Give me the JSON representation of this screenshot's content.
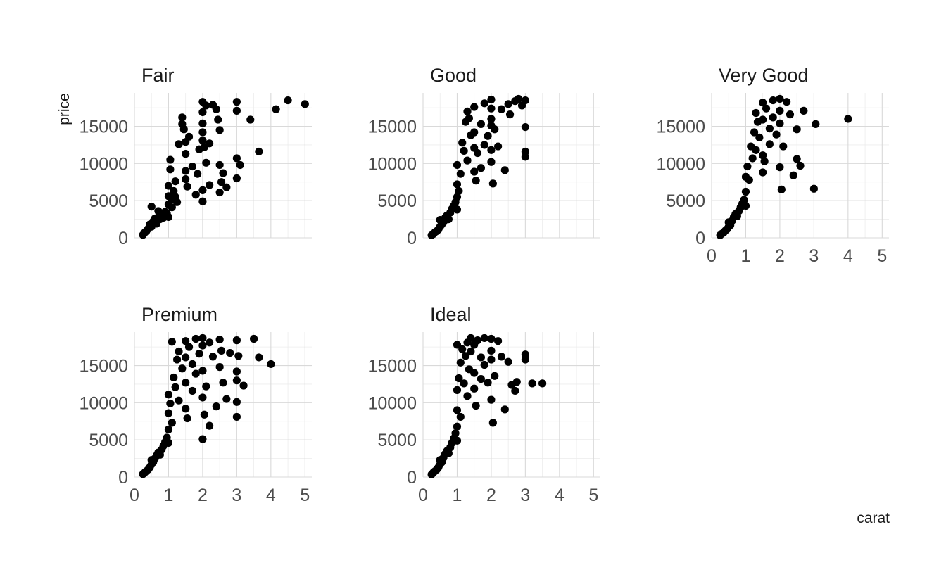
{
  "chart_data": {
    "type": "scatter",
    "xlabel": "carat",
    "ylabel": "price",
    "xlim": [
      0,
      5.2
    ],
    "ylim": [
      0,
      19500
    ],
    "x_ticks": [
      0,
      1,
      2,
      3,
      4,
      5
    ],
    "x_tick_labels": [
      "0",
      "1",
      "2",
      "3",
      "4",
      "5"
    ],
    "y_ticks": [
      0,
      5000,
      10000,
      15000
    ],
    "y_tick_labels": [
      "0",
      "5000",
      "10000",
      "15000"
    ],
    "grid": true,
    "point_color": "#000000",
    "facets": [
      {
        "name": "Fair",
        "points": [
          [
            0.25,
            400
          ],
          [
            0.3,
            700
          ],
          [
            0.35,
            900
          ],
          [
            0.4,
            1200
          ],
          [
            0.45,
            1800
          ],
          [
            0.5,
            1500
          ],
          [
            0.5,
            4200
          ],
          [
            0.55,
            2200
          ],
          [
            0.6,
            2600
          ],
          [
            0.65,
            1900
          ],
          [
            0.7,
            2800
          ],
          [
            0.7,
            3600
          ],
          [
            0.75,
            2500
          ],
          [
            0.8,
            3100
          ],
          [
            0.85,
            2700
          ],
          [
            0.9,
            3500
          ],
          [
            0.95,
            3300
          ],
          [
            1.0,
            2800
          ],
          [
            1.0,
            4500
          ],
          [
            1.0,
            5600
          ],
          [
            1.0,
            7000
          ],
          [
            1.05,
            9200
          ],
          [
            1.05,
            10500
          ],
          [
            1.1,
            5200
          ],
          [
            1.1,
            4100
          ],
          [
            1.15,
            6300
          ],
          [
            1.2,
            5500
          ],
          [
            1.2,
            7600
          ],
          [
            1.25,
            4800
          ],
          [
            1.3,
            12600
          ],
          [
            1.4,
            16200
          ],
          [
            1.4,
            15300
          ],
          [
            1.45,
            14600
          ],
          [
            1.5,
            12900
          ],
          [
            1.5,
            11300
          ],
          [
            1.5,
            9000
          ],
          [
            1.5,
            7900
          ],
          [
            1.55,
            6900
          ],
          [
            1.6,
            13600
          ],
          [
            1.7,
            9600
          ],
          [
            1.8,
            5800
          ],
          [
            1.85,
            8600
          ],
          [
            1.9,
            11900
          ],
          [
            2.0,
            18300
          ],
          [
            2.0,
            16900
          ],
          [
            2.0,
            15400
          ],
          [
            2.0,
            14200
          ],
          [
            2.0,
            13100
          ],
          [
            2.0,
            6400
          ],
          [
            2.0,
            4900
          ],
          [
            2.05,
            12200
          ],
          [
            2.1,
            17800
          ],
          [
            2.1,
            10100
          ],
          [
            2.2,
            12700
          ],
          [
            2.2,
            7100
          ],
          [
            2.3,
            17900
          ],
          [
            2.4,
            17300
          ],
          [
            2.45,
            15900
          ],
          [
            2.5,
            14500
          ],
          [
            2.5,
            9800
          ],
          [
            2.5,
            6100
          ],
          [
            2.55,
            7500
          ],
          [
            2.6,
            8700
          ],
          [
            2.7,
            6800
          ],
          [
            3.0,
            18300
          ],
          [
            3.0,
            17100
          ],
          [
            3.0,
            10700
          ],
          [
            3.0,
            8000
          ],
          [
            3.1,
            9800
          ],
          [
            3.4,
            15900
          ],
          [
            3.65,
            11600
          ],
          [
            4.15,
            17300
          ],
          [
            4.5,
            18500
          ],
          [
            5.0,
            18000
          ]
        ]
      },
      {
        "name": "Good",
        "points": [
          [
            0.25,
            350
          ],
          [
            0.3,
            500
          ],
          [
            0.35,
            750
          ],
          [
            0.4,
            900
          ],
          [
            0.45,
            1100
          ],
          [
            0.5,
            1500
          ],
          [
            0.5,
            2400
          ],
          [
            0.55,
            1800
          ],
          [
            0.6,
            2100
          ],
          [
            0.65,
            2700
          ],
          [
            0.7,
            3000
          ],
          [
            0.75,
            2500
          ],
          [
            0.8,
            3400
          ],
          [
            0.85,
            3900
          ],
          [
            0.9,
            4300
          ],
          [
            0.95,
            4800
          ],
          [
            1.0,
            5500
          ],
          [
            1.0,
            7200
          ],
          [
            1.0,
            9800
          ],
          [
            1.0,
            3800
          ],
          [
            1.05,
            6300
          ],
          [
            1.1,
            8600
          ],
          [
            1.15,
            12800
          ],
          [
            1.2,
            11700
          ],
          [
            1.25,
            15600
          ],
          [
            1.3,
            17000
          ],
          [
            1.3,
            10400
          ],
          [
            1.35,
            16100
          ],
          [
            1.4,
            13800
          ],
          [
            1.5,
            17600
          ],
          [
            1.5,
            14200
          ],
          [
            1.5,
            12100
          ],
          [
            1.5,
            8900
          ],
          [
            1.55,
            7700
          ],
          [
            1.6,
            11400
          ],
          [
            1.7,
            15300
          ],
          [
            1.7,
            9400
          ],
          [
            1.8,
            18100
          ],
          [
            1.8,
            12500
          ],
          [
            1.9,
            13700
          ],
          [
            2.0,
            18600
          ],
          [
            2.0,
            17400
          ],
          [
            2.0,
            16000
          ],
          [
            2.0,
            15100
          ],
          [
            2.0,
            11800
          ],
          [
            2.0,
            10200
          ],
          [
            2.05,
            7300
          ],
          [
            2.1,
            14600
          ],
          [
            2.2,
            12300
          ],
          [
            2.3,
            17300
          ],
          [
            2.4,
            9100
          ],
          [
            2.5,
            18000
          ],
          [
            2.55,
            16600
          ],
          [
            2.7,
            18400
          ],
          [
            2.8,
            18700
          ],
          [
            2.9,
            17800
          ],
          [
            3.0,
            18500
          ],
          [
            3.0,
            14900
          ],
          [
            3.0,
            11600
          ],
          [
            3.0,
            10900
          ]
        ]
      },
      {
        "name": "Very Good",
        "points": [
          [
            0.25,
            350
          ],
          [
            0.3,
            550
          ],
          [
            0.35,
            700
          ],
          [
            0.4,
            950
          ],
          [
            0.45,
            1150
          ],
          [
            0.5,
            1500
          ],
          [
            0.5,
            2100
          ],
          [
            0.55,
            1700
          ],
          [
            0.6,
            2300
          ],
          [
            0.65,
            2800
          ],
          [
            0.7,
            3200
          ],
          [
            0.75,
            2900
          ],
          [
            0.8,
            3600
          ],
          [
            0.85,
            4100
          ],
          [
            0.9,
            4600
          ],
          [
            0.95,
            5100
          ],
          [
            1.0,
            6200
          ],
          [
            1.0,
            8200
          ],
          [
            1.0,
            4300
          ],
          [
            1.05,
            9600
          ],
          [
            1.1,
            7800
          ],
          [
            1.15,
            12300
          ],
          [
            1.2,
            10700
          ],
          [
            1.25,
            14200
          ],
          [
            1.3,
            16800
          ],
          [
            1.3,
            11800
          ],
          [
            1.35,
            15600
          ],
          [
            1.4,
            13500
          ],
          [
            1.5,
            18200
          ],
          [
            1.5,
            15900
          ],
          [
            1.5,
            11100
          ],
          [
            1.5,
            8800
          ],
          [
            1.55,
            10300
          ],
          [
            1.6,
            17400
          ],
          [
            1.7,
            14700
          ],
          [
            1.7,
            12600
          ],
          [
            1.8,
            18500
          ],
          [
            1.8,
            16200
          ],
          [
            1.9,
            13900
          ],
          [
            2.0,
            18700
          ],
          [
            2.0,
            17100
          ],
          [
            2.0,
            15400
          ],
          [
            2.0,
            9500
          ],
          [
            2.05,
            6500
          ],
          [
            2.1,
            12300
          ],
          [
            2.2,
            18300
          ],
          [
            2.3,
            16600
          ],
          [
            2.4,
            8400
          ],
          [
            2.5,
            14600
          ],
          [
            2.5,
            10600
          ],
          [
            2.6,
            9700
          ],
          [
            2.7,
            17100
          ],
          [
            3.0,
            6600
          ],
          [
            3.05,
            15300
          ],
          [
            4.0,
            16000
          ]
        ]
      },
      {
        "name": "Premium",
        "points": [
          [
            0.25,
            400
          ],
          [
            0.3,
            600
          ],
          [
            0.35,
            800
          ],
          [
            0.4,
            1000
          ],
          [
            0.45,
            1300
          ],
          [
            0.5,
            1700
          ],
          [
            0.5,
            2300
          ],
          [
            0.55,
            2000
          ],
          [
            0.6,
            2500
          ],
          [
            0.65,
            2900
          ],
          [
            0.7,
            3300
          ],
          [
            0.75,
            3000
          ],
          [
            0.8,
            3700
          ],
          [
            0.85,
            4200
          ],
          [
            0.9,
            4700
          ],
          [
            0.95,
            5300
          ],
          [
            1.0,
            6400
          ],
          [
            1.0,
            8600
          ],
          [
            1.0,
            11100
          ],
          [
            1.0,
            4600
          ],
          [
            1.05,
            9900
          ],
          [
            1.1,
            7300
          ],
          [
            1.1,
            18200
          ],
          [
            1.15,
            13400
          ],
          [
            1.2,
            12100
          ],
          [
            1.25,
            15800
          ],
          [
            1.3,
            16900
          ],
          [
            1.3,
            10300
          ],
          [
            1.4,
            14600
          ],
          [
            1.5,
            18300
          ],
          [
            1.5,
            16100
          ],
          [
            1.5,
            12700
          ],
          [
            1.5,
            9200
          ],
          [
            1.55,
            7900
          ],
          [
            1.6,
            17500
          ],
          [
            1.7,
            15200
          ],
          [
            1.7,
            11600
          ],
          [
            1.8,
            18600
          ],
          [
            1.8,
            13900
          ],
          [
            1.9,
            16600
          ],
          [
            2.0,
            18700
          ],
          [
            2.0,
            17700
          ],
          [
            2.0,
            14300
          ],
          [
            2.0,
            10700
          ],
          [
            2.0,
            5100
          ],
          [
            2.05,
            8400
          ],
          [
            2.1,
            12200
          ],
          [
            2.2,
            18100
          ],
          [
            2.2,
            6900
          ],
          [
            2.3,
            16200
          ],
          [
            2.4,
            9500
          ],
          [
            2.5,
            18500
          ],
          [
            2.5,
            14800
          ],
          [
            2.55,
            17000
          ],
          [
            2.6,
            12700
          ],
          [
            2.7,
            10500
          ],
          [
            2.8,
            16700
          ],
          [
            3.0,
            18400
          ],
          [
            3.0,
            14200
          ],
          [
            3.0,
            13000
          ],
          [
            3.0,
            10100
          ],
          [
            3.0,
            8100
          ],
          [
            3.05,
            16300
          ],
          [
            3.2,
            12300
          ],
          [
            3.5,
            18600
          ],
          [
            3.65,
            16100
          ],
          [
            4.0,
            15200
          ]
        ]
      },
      {
        "name": "Ideal",
        "points": [
          [
            0.25,
            350
          ],
          [
            0.3,
            600
          ],
          [
            0.35,
            800
          ],
          [
            0.4,
            1000
          ],
          [
            0.45,
            1300
          ],
          [
            0.5,
            1700
          ],
          [
            0.5,
            2300
          ],
          [
            0.55,
            2000
          ],
          [
            0.6,
            2600
          ],
          [
            0.65,
            3100
          ],
          [
            0.7,
            3500
          ],
          [
            0.75,
            3200
          ],
          [
            0.8,
            4000
          ],
          [
            0.85,
            4600
          ],
          [
            0.9,
            5200
          ],
          [
            0.95,
            5900
          ],
          [
            1.0,
            6800
          ],
          [
            1.0,
            9000
          ],
          [
            1.0,
            11700
          ],
          [
            1.0,
            4900
          ],
          [
            1.0,
            17800
          ],
          [
            1.05,
            13300
          ],
          [
            1.1,
            15400
          ],
          [
            1.1,
            8100
          ],
          [
            1.15,
            17200
          ],
          [
            1.2,
            12600
          ],
          [
            1.25,
            16300
          ],
          [
            1.3,
            18100
          ],
          [
            1.3,
            10900
          ],
          [
            1.35,
            14500
          ],
          [
            1.4,
            18700
          ],
          [
            1.4,
            16900
          ],
          [
            1.5,
            17800
          ],
          [
            1.5,
            14000
          ],
          [
            1.5,
            11900
          ],
          [
            1.55,
            9600
          ],
          [
            1.6,
            18400
          ],
          [
            1.7,
            16100
          ],
          [
            1.7,
            13200
          ],
          [
            1.8,
            18700
          ],
          [
            1.8,
            15100
          ],
          [
            1.9,
            12700
          ],
          [
            2.0,
            18600
          ],
          [
            2.0,
            17000
          ],
          [
            2.0,
            15800
          ],
          [
            2.0,
            10400
          ],
          [
            2.05,
            7300
          ],
          [
            2.1,
            13600
          ],
          [
            2.2,
            18300
          ],
          [
            2.3,
            16200
          ],
          [
            2.4,
            9100
          ],
          [
            2.5,
            15500
          ],
          [
            2.6,
            12400
          ],
          [
            2.7,
            11600
          ],
          [
            2.75,
            12800
          ],
          [
            3.0,
            16500
          ],
          [
            3.0,
            15800
          ],
          [
            3.2,
            12600
          ],
          [
            3.5,
            12600
          ]
        ]
      }
    ]
  }
}
